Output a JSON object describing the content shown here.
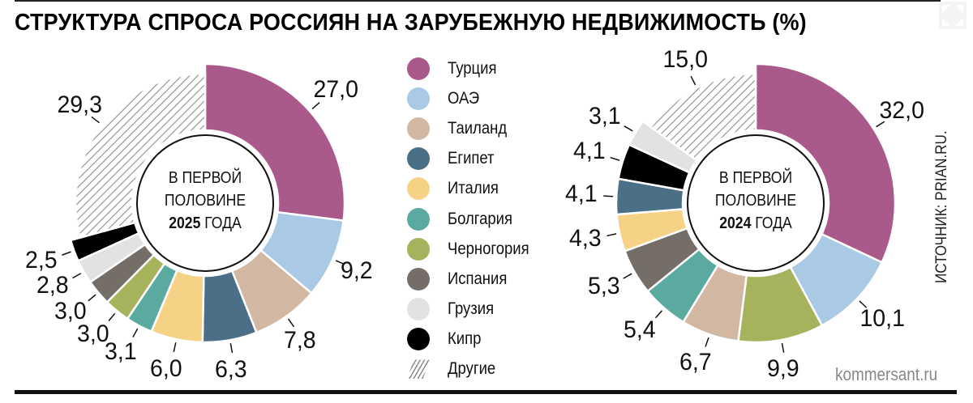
{
  "title": "СТРУКТУРА СПРОСА РОССИЯН НА ЗАРУБЕЖНУЮ НЕДВИЖИМОСТЬ (%)",
  "source": "ИСТОЧНИК: PRIAN.RU.",
  "brand": "kommersant.ru",
  "legend": [
    {
      "label": "Турция",
      "color": "#a95a8b"
    },
    {
      "label": "ОАЭ",
      "color": "#a9c9e4"
    },
    {
      "label": "Таиланд",
      "color": "#d2b8a2"
    },
    {
      "label": "Египет",
      "color": "#4a6f87"
    },
    {
      "label": "Италия",
      "color": "#f6d286"
    },
    {
      "label": "Болгария",
      "color": "#5aaaa0"
    },
    {
      "label": "Черногория",
      "color": "#a6b35c"
    },
    {
      "label": "Испания",
      "color": "#756d68"
    },
    {
      "label": "Грузия",
      "color": "#e2e2e2"
    },
    {
      "label": "Кипр",
      "color": "#000000"
    },
    {
      "label": "Другие",
      "color": "hatch"
    }
  ],
  "chart_data": [
    {
      "type": "pie",
      "title": "В ПЕРВОЙ ПОЛОВИНЕ 2025 ГОДА",
      "center": {
        "line1": "В ПЕРВОЙ",
        "line2": "ПОЛОВИНЕ",
        "year": "2025",
        "suffix": " ГОДА"
      },
      "unit": "%",
      "categories": [
        "Турция",
        "ОАЭ",
        "Таиланд",
        "Египет",
        "Италия",
        "Болгария",
        "Черногория",
        "Испания",
        "Грузия",
        "Кипр",
        "Другие"
      ],
      "values": [
        27.0,
        9.2,
        7.8,
        6.3,
        6.0,
        3.1,
        3.0,
        3.0,
        2.8,
        2.5,
        29.3
      ],
      "labels": [
        "27,0",
        "9,2",
        "7,8",
        "6,3",
        "6,0",
        "3,1",
        "3,0",
        "3,0",
        "2,8",
        "2,5",
        "29,3"
      ]
    },
    {
      "type": "pie",
      "title": "В ПЕРВОЙ ПОЛОВИНЕ 2024 ГОДА",
      "center": {
        "line1": "В ПЕРВОЙ",
        "line2": "ПОЛОВИНЕ",
        "year": "2024",
        "suffix": " ГОДА"
      },
      "unit": "%",
      "categories": [
        "Турция",
        "ОАЭ",
        "Черногория",
        "Таиланд",
        "Болгария",
        "Испания",
        "Италия",
        "Египет",
        "Кипр",
        "Грузия",
        "Другие"
      ],
      "values": [
        32.0,
        10.1,
        9.9,
        6.7,
        5.4,
        5.3,
        4.3,
        4.1,
        4.1,
        3.1,
        15.0
      ],
      "labels": [
        "32,0",
        "10,1",
        "9,9",
        "6,7",
        "5,4",
        "5,3",
        "4,3",
        "4,1",
        "4,1",
        "3,1",
        "15,0"
      ]
    }
  ]
}
